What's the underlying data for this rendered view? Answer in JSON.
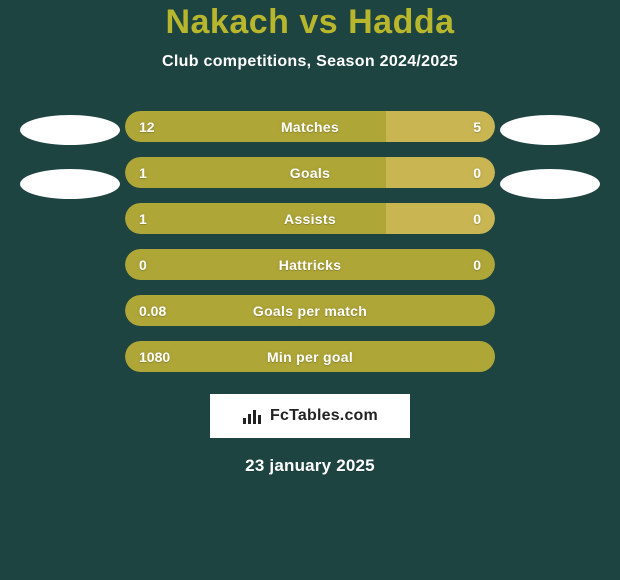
{
  "background_color": "#1e4441",
  "text_color": "#ffffff",
  "title_color": "#b8b62c",
  "bar_left_color": "#afa638",
  "bar_right_color": "#c9b652",
  "title_text": "Nakach vs Hadda",
  "title_fontsize": 34,
  "subtitle_text": "Club competitions, Season 2024/2025",
  "subtitle_fontsize": 16,
  "metric_fontsize": 14,
  "side_ellipses": {
    "left_count": 2,
    "right_count": 2
  },
  "metrics": [
    {
      "label": "Matches",
      "left_value": "12",
      "right_value": "5",
      "left_width_pct": 70.5,
      "right_width_pct": 29.5
    },
    {
      "label": "Goals",
      "left_value": "1",
      "right_value": "0",
      "left_width_pct": 70.5,
      "right_width_pct": 29.5
    },
    {
      "label": "Assists",
      "left_value": "1",
      "right_value": "0",
      "left_width_pct": 70.5,
      "right_width_pct": 29.5
    },
    {
      "label": "Hattricks",
      "left_value": "0",
      "right_value": "0",
      "left_width_pct": 50,
      "right_width_pct": 50,
      "equal_color": "#afa638"
    },
    {
      "label": "Goals per match",
      "left_value": "0.08",
      "right_value": "",
      "left_width_pct": 100,
      "right_width_pct": 0
    },
    {
      "label": "Min per goal",
      "left_value": "1080",
      "right_value": "",
      "left_width_pct": 100,
      "right_width_pct": 0
    }
  ],
  "badge_text": "FcTables.com",
  "date_text": "23 january 2025"
}
